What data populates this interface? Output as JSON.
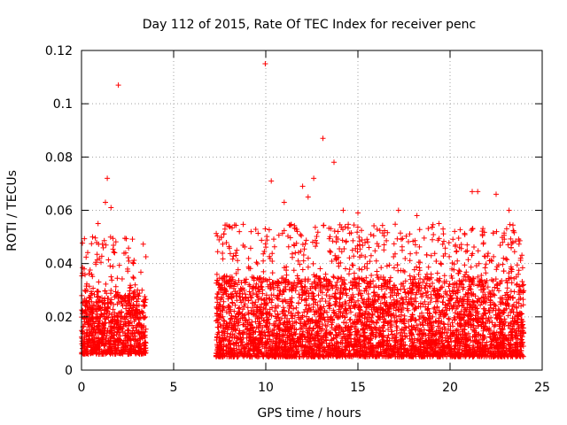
{
  "chart_data": {
    "type": "scatter",
    "title": "Day 112 of 2015, Rate Of TEC Index for receiver penc",
    "xlabel": "GPS time / hours",
    "ylabel": "ROTI / TECUs",
    "xlim": [
      0,
      25
    ],
    "ylim": [
      0,
      0.12
    ],
    "x_ticks": [
      0,
      5,
      10,
      15,
      20,
      25
    ],
    "x_tick_labels": [
      "0",
      "5",
      "10",
      "15",
      "20",
      "25"
    ],
    "y_ticks": [
      0,
      0.02,
      0.04,
      0.06,
      0.08,
      0.1,
      0.12
    ],
    "y_tick_labels": [
      "0",
      "0.02",
      "0.04",
      "0.06",
      "0.08",
      "0.1",
      "0.12"
    ],
    "grid": true,
    "marker": "+",
    "color": "#ff0000",
    "series": [
      {
        "name": "ROTI",
        "points": [
          [
            2.0,
            0.107
          ],
          [
            1.4,
            0.072
          ],
          [
            1.3,
            0.063
          ],
          [
            1.6,
            0.061
          ],
          [
            0.6,
            0.05
          ],
          [
            0.9,
            0.055
          ],
          [
            0.3,
            0.03
          ],
          [
            2.4,
            0.044
          ],
          [
            3.0,
            0.024
          ],
          [
            9.97,
            0.115
          ],
          [
            13.1,
            0.087
          ],
          [
            13.7,
            0.078
          ],
          [
            12.6,
            0.072
          ],
          [
            10.3,
            0.071
          ],
          [
            11.0,
            0.063
          ],
          [
            12.0,
            0.069
          ],
          [
            14.2,
            0.06
          ],
          [
            12.3,
            0.065
          ],
          [
            15.0,
            0.059
          ],
          [
            17.2,
            0.06
          ],
          [
            18.2,
            0.058
          ],
          [
            19.4,
            0.055
          ],
          [
            21.2,
            0.067
          ],
          [
            21.5,
            0.067
          ],
          [
            22.5,
            0.066
          ],
          [
            23.2,
            0.06
          ],
          [
            9.2,
            0.052
          ],
          [
            8.0,
            0.054
          ],
          [
            7.5,
            0.031
          ],
          [
            16.0,
            0.041
          ],
          [
            20.1,
            0.038
          ],
          [
            22.9,
            0.042
          ],
          [
            23.7,
            0.036
          ],
          [
            11.6,
            0.044
          ],
          [
            14.7,
            0.045
          ]
        ]
      }
    ],
    "envelope": [
      {
        "x_range": [
          0.0,
          3.5
        ],
        "low": 0.006,
        "high": 0.03
      },
      {
        "x_range": [
          7.3,
          24.0
        ],
        "low": 0.005,
        "high": 0.035
      }
    ]
  }
}
